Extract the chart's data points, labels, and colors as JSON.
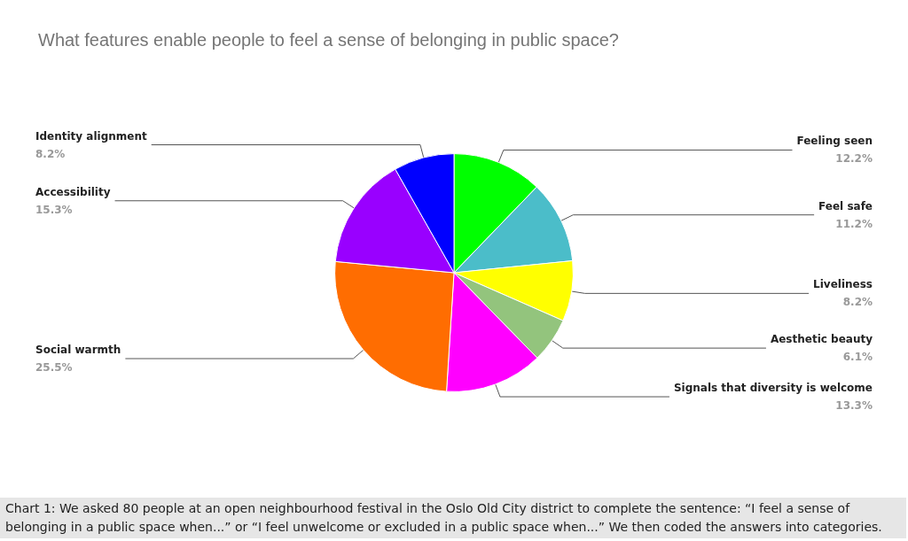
{
  "chart_data": {
    "type": "pie",
    "title": "What features enable people to feel a sense of belonging in public space?",
    "categories": [
      "Feeling seen",
      "Feel safe",
      "Liveliness",
      "Aesthetic beauty",
      "Signals that diversity is welcome",
      "Social warmth",
      "Accessibility",
      "Identity alignment"
    ],
    "values": [
      12.2,
      11.2,
      8.2,
      6.1,
      13.3,
      25.5,
      15.3,
      8.2
    ],
    "value_labels": [
      "12.2%",
      "11.2%",
      "8.2%",
      "6.1%",
      "13.3%",
      "25.5%",
      "15.3%",
      "8.2%"
    ],
    "colors": [
      "#00ff00",
      "#4bbdc9",
      "#ffff00",
      "#93c47d",
      "#ff00ff",
      "#ff6d01",
      "#9900ff",
      "#0000ff"
    ],
    "legend": false,
    "annotations": [
      "Chart 1: We asked 80 people at an open neighbourhood festival in the Oslo Old City district to complete the sentence: “I feel a sense of belonging in a public space when...” or “I feel unwelcome or excluded in a public space when...”  We then coded the answers into categories."
    ]
  }
}
